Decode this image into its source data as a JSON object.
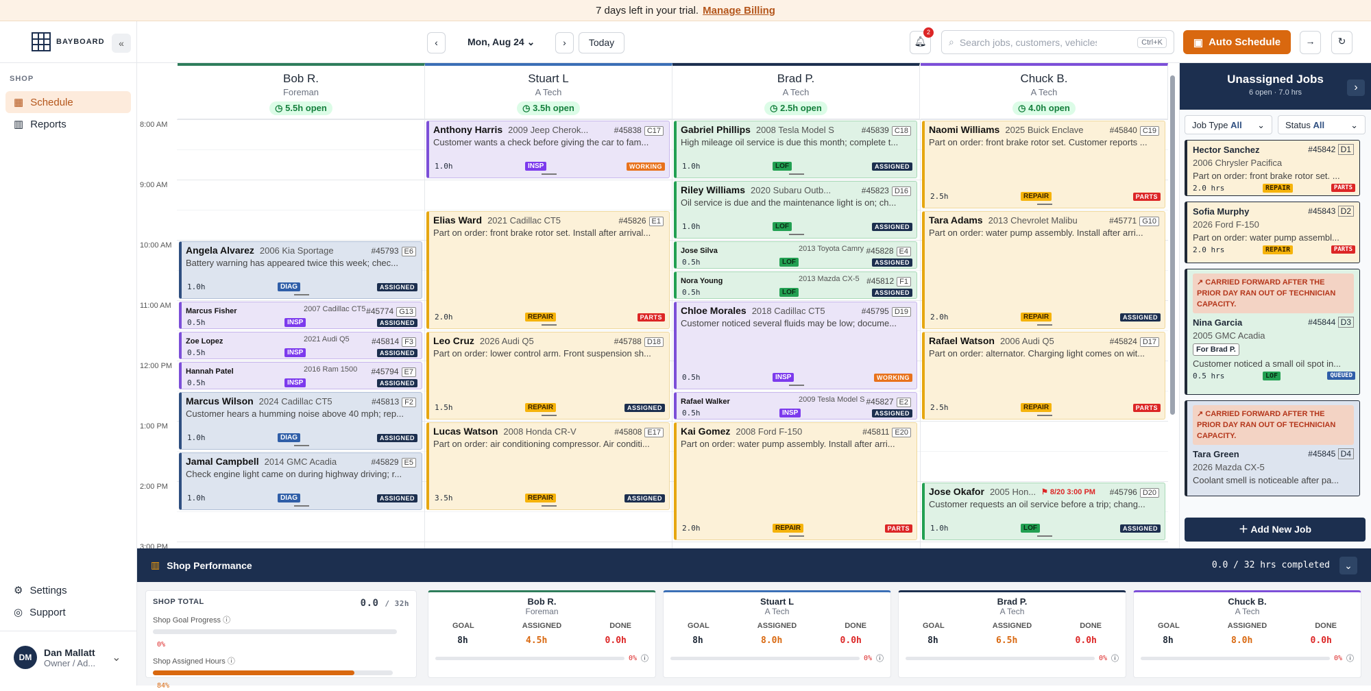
{
  "banner": {
    "text": "7 days left in your trial.",
    "link": "Manage Billing"
  },
  "sidebar": {
    "brand": "BAYBOARD",
    "section": "SHOP",
    "items": [
      {
        "label": "Schedule",
        "icon": "calendar-grid-icon"
      },
      {
        "label": "Reports",
        "icon": "bar-chart-icon"
      }
    ],
    "footer": [
      {
        "label": "Settings",
        "icon": "gear-icon"
      },
      {
        "label": "Support",
        "icon": "help-circle-icon"
      }
    ],
    "user": {
      "initials": "DM",
      "name": "Dan Mallatt",
      "role": "Owner / Ad..."
    }
  },
  "topbar": {
    "date": "Mon, Aug 24",
    "today": "Today",
    "notif_count": "2",
    "search_placeholder": "Search jobs, customers, vehicles, VIN",
    "shortcut": "Ctrl+K",
    "auto": "Auto Schedule"
  },
  "times": [
    "8:00 AM",
    "9:00 AM",
    "10:00 AM",
    "11:00 AM",
    "12:00 PM",
    "1:00 PM",
    "2:00 PM",
    "3:00 PM"
  ],
  "techs": [
    {
      "name": "Bob R.",
      "role": "Foreman",
      "open": "5.5h open",
      "color": "#2e7d5b"
    },
    {
      "name": "Stuart L",
      "role": "A Tech",
      "open": "3.5h open",
      "color": "#3b6fb6"
    },
    {
      "name": "Brad P.",
      "role": "A Tech",
      "open": "2.5h open",
      "color": "#1c2f4f"
    },
    {
      "name": "Chuck B.",
      "role": "A Tech",
      "open": "4.0h open",
      "color": "#7c4fd8"
    }
  ],
  "jobs": [
    {
      "c": "b",
      "n": "Angela Alvarez",
      "v": "2006 Kia Sportage",
      "no": "#45793",
      "bay": "E6",
      "d": "Battery warning has appeared twice this week; chec...",
      "h": "1.0h",
      "tag": "DIAG",
      "st": "ASSIGNED"
    },
    {
      "c": "p",
      "n": "Marcus Fisher",
      "v": "2007 Cadillac CT5",
      "no": "#45774",
      "bay": "G13",
      "h": "0.5h",
      "tag": "INSP",
      "st": "ASSIGNED"
    },
    {
      "c": "p",
      "n": "Zoe Lopez",
      "v": "2021 Audi Q5",
      "no": "#45814",
      "bay": "F3",
      "h": "0.5h",
      "tag": "INSP",
      "st": "ASSIGNED"
    },
    {
      "c": "p",
      "n": "Hannah Patel",
      "v": "2016 Ram 1500",
      "no": "#45794",
      "bay": "E7",
      "h": "0.5h",
      "tag": "INSP",
      "st": "ASSIGNED"
    },
    {
      "c": "b",
      "n": "Marcus Wilson",
      "v": "2024 Cadillac CT5",
      "no": "#45813",
      "bay": "F2",
      "d": "Customer hears a humming noise above 40 mph; rep...",
      "h": "1.0h",
      "tag": "DIAG",
      "st": "ASSIGNED"
    },
    {
      "c": "b",
      "n": "Jamal Campbell",
      "v": "2014 GMC Acadia",
      "no": "#45829",
      "bay": "E5",
      "d": "Check engine light came on during highway driving; r...",
      "h": "1.0h",
      "tag": "DIAG",
      "st": "ASSIGNED"
    },
    {
      "c": "p",
      "n": "Anthony Harris",
      "v": "2009 Jeep Cherok...",
      "no": "#45838",
      "bay": "C17",
      "d": "Customer wants a check before giving the car to fam...",
      "h": "1.0h",
      "tag": "INSP",
      "st": "WORKING"
    },
    {
      "c": "y",
      "n": "Elias Ward",
      "v": "2021 Cadillac CT5",
      "no": "#45826",
      "bay": "E1",
      "d": "Part on order: front brake rotor set. Install after arrival...",
      "h": "2.0h",
      "tag": "REPAIR",
      "st": "PARTS"
    },
    {
      "c": "y",
      "n": "Leo Cruz",
      "v": "2026 Audi Q5",
      "no": "#45788",
      "bay": "D18",
      "d": "Part on order: lower control arm. Front suspension sh...",
      "h": "1.5h",
      "tag": "REPAIR",
      "st": "ASSIGNED"
    },
    {
      "c": "y",
      "n": "Lucas Watson",
      "v": "2008 Honda CR-V",
      "no": "#45808",
      "bay": "E17",
      "d": "Part on order: air conditioning compressor. Air conditi...",
      "h": "3.5h",
      "tag": "REPAIR",
      "st": "ASSIGNED"
    },
    {
      "c": "g",
      "n": "Gabriel Phillips",
      "v": "2008 Tesla Model S",
      "no": "#45839",
      "bay": "C18",
      "d": "High mileage oil service is due this month; complete t...",
      "h": "1.0h",
      "tag": "LOF",
      "st": "ASSIGNED"
    },
    {
      "c": "g",
      "n": "Riley Williams",
      "v": "2020 Subaru Outb...",
      "no": "#45823",
      "bay": "D16",
      "d": "Oil service is due and the maintenance light is on; ch...",
      "h": "1.0h",
      "tag": "LOF",
      "st": "ASSIGNED"
    },
    {
      "c": "g",
      "n": "Jose Silva",
      "v": "2013 Toyota Camry",
      "no": "#45828",
      "bay": "E4",
      "h": "0.5h",
      "tag": "LOF",
      "st": "ASSIGNED"
    },
    {
      "c": "g",
      "n": "Nora Young",
      "v": "2013 Mazda CX-5",
      "no": "#45812",
      "bay": "F1",
      "h": "0.5h",
      "tag": "LOF",
      "st": "ASSIGNED"
    },
    {
      "c": "p",
      "n": "Chloe Morales",
      "v": "2018 Cadillac CT5",
      "no": "#45795",
      "bay": "D19",
      "d": "Customer noticed several fluids may be low; docume...",
      "h": "0.5h",
      "tag": "INSP",
      "st": "WORKING"
    },
    {
      "c": "p",
      "n": "Rafael Walker",
      "v": "2009 Tesla Model S",
      "no": "#45827",
      "bay": "E2",
      "h": "0.5h",
      "tag": "INSP",
      "st": "ASSIGNED"
    },
    {
      "c": "y",
      "n": "Kai Gomez",
      "v": "2008 Ford F-150",
      "no": "#45811",
      "bay": "E20",
      "d": "Part on order: water pump assembly. Install after arri...",
      "h": "2.0h",
      "tag": "REPAIR",
      "st": "PARTS"
    },
    {
      "c": "y",
      "n": "Naomi Williams",
      "v": "2025 Buick Enclave",
      "no": "#45840",
      "bay": "C19",
      "d": "Part on order: front brake rotor set. Customer reports ...",
      "h": "2.5h",
      "tag": "REPAIR",
      "st": "PARTS"
    },
    {
      "c": "y",
      "n": "Tara Adams",
      "v": "2013 Chevrolet Malibu",
      "no": "#45771",
      "bay": "G10",
      "d": "Part on order: water pump assembly. Install after arri...",
      "h": "2.0h",
      "tag": "REPAIR",
      "st": "ASSIGNED"
    },
    {
      "c": "y",
      "n": "Rafael Watson",
      "v": "2006 Audi Q5",
      "no": "#45824",
      "bay": "D17",
      "d": "Part on order: alternator. Charging light comes on wit...",
      "h": "2.5h",
      "tag": "REPAIR",
      "st": "PARTS"
    },
    {
      "c": "g",
      "n": "Jose Okafor",
      "v": "2005 Hon...",
      "no": "#45796",
      "bay": "D20",
      "d": "Customer requests an oil service before a trip; chang...",
      "h": "1.0h",
      "tag": "LOF",
      "st": "ASSIGNED",
      "due": "8/20 3:00 PM"
    }
  ],
  "unassigned": {
    "title": "Unassigned Jobs",
    "sub": "6 open · 7.0 hrs",
    "f1": "Job Type",
    "f1v": "All",
    "f2": "Status",
    "f2v": "All",
    "add": "Add New Job",
    "carry": "CARRIED FORWARD AFTER THE PRIOR DAY RAN OUT OF TECHNICIAN CAPACITY.",
    "for": "For Brad P.",
    "items": [
      {
        "n": "Hector Sanchez",
        "no": "#45842",
        "bay": "D1",
        "v": "2006 Chrysler Pacifica",
        "d": "Part on order: front brake rotor set. ...",
        "h": "2.0 hrs",
        "tag": "REPAIR",
        "st": "PARTS"
      },
      {
        "n": "Sofia Murphy",
        "no": "#45843",
        "bay": "D2",
        "v": "2026 Ford F-150",
        "d": "Part on order: water pump assembl...",
        "h": "2.0 hrs",
        "tag": "REPAIR",
        "st": "PARTS"
      },
      {
        "n": "Nina Garcia",
        "no": "#45844",
        "bay": "D3",
        "v": "2005 GMC Acadia",
        "d": "Customer noticed a small oil spot in...",
        "h": "0.5 hrs",
        "tag": "LOF",
        "st": "QUEUED"
      },
      {
        "n": "Tara Green",
        "no": "#45845",
        "bay": "D4",
        "v": "2026 Mazda CX-5",
        "d": "Coolant smell is noticeable after pa..."
      }
    ]
  },
  "perf": {
    "title": "Shop Performance",
    "completed": "0.0 / 32 hrs completed",
    "total_label": "SHOP TOTAL",
    "total": "0.0",
    "total_of": "/ 32h",
    "goal_label": "Shop Goal Progress",
    "goal_pct": "0%",
    "assigned_label": "Shop Assigned Hours",
    "assigned_pct": "84%",
    "assigned_frac": 0.84,
    "cols": [
      "GOAL",
      "ASSIGNED",
      "DONE"
    ],
    "techs": [
      {
        "name": "Bob R.",
        "role": "Foreman",
        "goal": "8h",
        "assigned": "4.5h",
        "done": "0.0h",
        "pct": "0%"
      },
      {
        "name": "Stuart L",
        "role": "A Tech",
        "goal": "8h",
        "assigned": "8.0h",
        "done": "0.0h",
        "pct": "0%"
      },
      {
        "name": "Brad P.",
        "role": "A Tech",
        "goal": "8h",
        "assigned": "6.5h",
        "done": "0.0h",
        "pct": "0%"
      },
      {
        "name": "Chuck B.",
        "role": "A Tech",
        "goal": "8h",
        "assigned": "8.0h",
        "done": "0.0h",
        "pct": "0%"
      }
    ]
  }
}
